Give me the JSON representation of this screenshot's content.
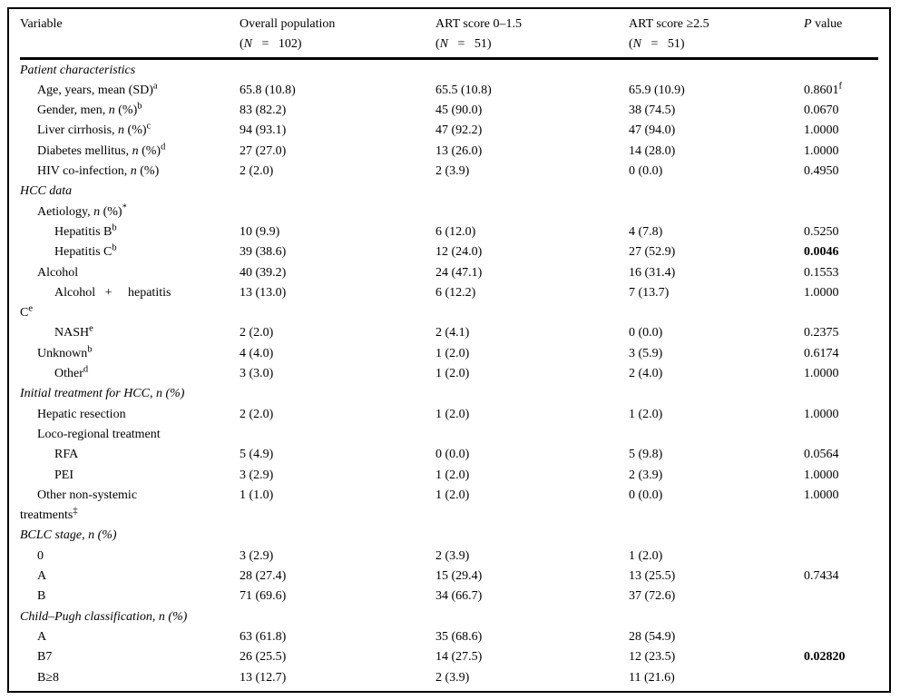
{
  "table": {
    "header": {
      "variable": "Variable",
      "groups": [
        {
          "line1": [
            {
              "t": "Overall population"
            }
          ],
          "line2": [
            {
              "t": "("
            },
            {
              "t": "N",
              "s": "i"
            },
            {
              "t": "   =   "
            },
            {
              "t": "102)"
            }
          ]
        },
        {
          "line1": [
            {
              "t": "ART score 0–1.5"
            }
          ],
          "line2": [
            {
              "t": "("
            },
            {
              "t": "N",
              "s": "i"
            },
            {
              "t": "   =   "
            },
            {
              "t": "51)"
            }
          ]
        },
        {
          "line1": [
            {
              "t": "ART score ≥2.5"
            }
          ],
          "line2": [
            {
              "t": "("
            },
            {
              "t": "N",
              "s": "i"
            },
            {
              "t": "   =   "
            },
            {
              "t": "51)"
            }
          ]
        }
      ],
      "p": [
        {
          "t": "P",
          "s": "i"
        },
        {
          "t": " value"
        }
      ]
    },
    "rows": [
      {
        "section": true,
        "indent": 0,
        "label": [
          {
            "t": "Patient characteristics"
          }
        ],
        "cols": [
          "",
          "",
          ""
        ],
        "p": []
      },
      {
        "indent": 1,
        "label": [
          {
            "t": "Age, years, mean (SD)"
          },
          {
            "t": "a",
            "s": "sup"
          }
        ],
        "cols": [
          "65.8 (10.8)",
          "65.5 (10.8)",
          "65.9 (10.9)"
        ],
        "p": [
          {
            "t": "0.8601"
          },
          {
            "t": "f",
            "s": "sup"
          }
        ]
      },
      {
        "indent": 1,
        "label": [
          {
            "t": "Gender, men, "
          },
          {
            "t": "n",
            "s": "i"
          },
          {
            "t": " (%)"
          },
          {
            "t": "b",
            "s": "sup"
          }
        ],
        "cols": [
          "83 (82.2)",
          "45 (90.0)",
          "38 (74.5)"
        ],
        "p": [
          {
            "t": "0.0670"
          }
        ]
      },
      {
        "indent": 1,
        "label": [
          {
            "t": "Liver cirrhosis, "
          },
          {
            "t": "n",
            "s": "i"
          },
          {
            "t": " (%)"
          },
          {
            "t": "c",
            "s": "sup"
          }
        ],
        "cols": [
          "94 (93.1)",
          "47 (92.2)",
          "47 (94.0)"
        ],
        "p": [
          {
            "t": "1.0000"
          }
        ]
      },
      {
        "indent": 1,
        "label": [
          {
            "t": "Diabetes mellitus, "
          },
          {
            "t": "n",
            "s": "i"
          },
          {
            "t": " (%)"
          },
          {
            "t": "d",
            "s": "sup"
          }
        ],
        "cols": [
          "27 (27.0)",
          "13 (26.0)",
          "14 (28.0)"
        ],
        "p": [
          {
            "t": "1.0000"
          }
        ]
      },
      {
        "indent": 1,
        "label": [
          {
            "t": "HIV co-infection, "
          },
          {
            "t": "n",
            "s": "i"
          },
          {
            "t": " (%)"
          }
        ],
        "cols": [
          "2 (2.0)",
          "2 (3.9)",
          "0 (0.0)"
        ],
        "p": [
          {
            "t": "0.4950"
          }
        ]
      },
      {
        "section": true,
        "indent": 0,
        "label": [
          {
            "t": "HCC data"
          }
        ],
        "cols": [
          "",
          "",
          ""
        ],
        "p": []
      },
      {
        "indent": 1,
        "label": [
          {
            "t": "Aetiology, "
          },
          {
            "t": "n",
            "s": "i"
          },
          {
            "t": " (%)"
          },
          {
            "t": "*",
            "s": "sup"
          }
        ],
        "cols": [
          "",
          "",
          ""
        ],
        "p": []
      },
      {
        "indent": 2,
        "label": [
          {
            "t": "Hepatitis B"
          },
          {
            "t": "b",
            "s": "sup"
          }
        ],
        "cols": [
          "10 (9.9)",
          "6 (12.0)",
          "4 (7.8)"
        ],
        "p": [
          {
            "t": "0.5250"
          }
        ]
      },
      {
        "indent": 2,
        "label": [
          {
            "t": "Hepatitis C"
          },
          {
            "t": "b",
            "s": "sup"
          }
        ],
        "cols": [
          "39 (38.6)",
          "12 (24.0)",
          "27 (52.9)"
        ],
        "p": [
          {
            "t": "0.0046",
            "s": "b"
          }
        ]
      },
      {
        "indent": 1,
        "label": [
          {
            "t": "Alcohol"
          }
        ],
        "cols": [
          "40 (39.2)",
          "24 (47.1)",
          "16 (31.4)"
        ],
        "p": [
          {
            "t": "0.1553"
          }
        ]
      },
      {
        "indent": 2,
        "label": [
          {
            "t": "Alcohol   +     hepatitis"
          },
          {
            "s": "br"
          },
          {
            "t": "C"
          },
          {
            "t": "e",
            "s": "sup"
          }
        ],
        "cols": [
          "13 (13.0)",
          "6 (12.2)",
          "7 (13.7)"
        ],
        "p": [
          {
            "t": "1.0000"
          }
        ]
      },
      {
        "indent": 2,
        "label": [
          {
            "t": "NASH"
          },
          {
            "t": "e",
            "s": "sup"
          }
        ],
        "cols": [
          "2 (2.0)",
          "2 (4.1)",
          "0 (0.0)"
        ],
        "p": [
          {
            "t": "0.2375"
          }
        ]
      },
      {
        "indent": 1,
        "label": [
          {
            "t": "Unknown"
          },
          {
            "t": "b",
            "s": "sup"
          }
        ],
        "cols": [
          "4 (4.0)",
          "1 (2.0)",
          "3 (5.9)"
        ],
        "p": [
          {
            "t": "0.6174"
          }
        ]
      },
      {
        "indent": 2,
        "label": [
          {
            "t": "Other"
          },
          {
            "t": "d",
            "s": "sup"
          }
        ],
        "cols": [
          "3 (3.0)",
          "1 (2.0)",
          "2 (4.0)"
        ],
        "p": [
          {
            "t": "1.0000"
          }
        ]
      },
      {
        "section": true,
        "indent": 0,
        "label": [
          {
            "t": "Initial treatment for HCC, n (%)"
          }
        ],
        "cols": [
          "",
          "",
          ""
        ],
        "p": []
      },
      {
        "indent": 1,
        "label": [
          {
            "t": "Hepatic resection"
          }
        ],
        "cols": [
          "2 (2.0)",
          "1 (2.0)",
          "1 (2.0)"
        ],
        "p": [
          {
            "t": "1.0000"
          }
        ]
      },
      {
        "indent": 1,
        "label": [
          {
            "t": "Loco-regional treatment"
          }
        ],
        "cols": [
          "",
          "",
          ""
        ],
        "p": []
      },
      {
        "indent": 2,
        "label": [
          {
            "t": "RFA"
          }
        ],
        "cols": [
          "5 (4.9)",
          "0 (0.0)",
          "5 (9.8)"
        ],
        "p": [
          {
            "t": "0.0564"
          }
        ]
      },
      {
        "indent": 2,
        "label": [
          {
            "t": "PEI"
          }
        ],
        "cols": [
          "3 (2.9)",
          "1 (2.0)",
          "2 (3.9)"
        ],
        "p": [
          {
            "t": "1.0000"
          }
        ]
      },
      {
        "indent": 1,
        "label": [
          {
            "t": "Other non-systemic"
          },
          {
            "s": "br"
          },
          {
            "t": "treatments"
          },
          {
            "t": "‡",
            "s": "sup"
          }
        ],
        "cols": [
          "1 (1.0)",
          "1 (2.0)",
          "0 (0.0)"
        ],
        "p": [
          {
            "t": "1.0000"
          }
        ]
      },
      {
        "section": true,
        "indent": 0,
        "label": [
          {
            "t": "BCLC stage, n (%)"
          }
        ],
        "cols": [
          "",
          "",
          ""
        ],
        "p": []
      },
      {
        "indent": 1,
        "label": [
          {
            "t": "0"
          }
        ],
        "cols": [
          "3 (2.9)",
          "2 (3.9)",
          "1 (2.0)"
        ],
        "p": []
      },
      {
        "indent": 1,
        "label": [
          {
            "t": "A"
          }
        ],
        "cols": [
          "28 (27.4)",
          "15 (29.4)",
          "13 (25.5)"
        ],
        "p": [
          {
            "t": "0.7434"
          }
        ]
      },
      {
        "indent": 1,
        "label": [
          {
            "t": "B"
          }
        ],
        "cols": [
          "71 (69.6)",
          "34 (66.7)",
          "37 (72.6)"
        ],
        "p": []
      },
      {
        "section": true,
        "indent": 0,
        "label": [
          {
            "t": "Child–Pugh classification, n (%)"
          }
        ],
        "cols": [
          "",
          "",
          ""
        ],
        "p": []
      },
      {
        "indent": 1,
        "label": [
          {
            "t": "A"
          }
        ],
        "cols": [
          "63 (61.8)",
          "35 (68.6)",
          "28 (54.9)"
        ],
        "p": []
      },
      {
        "indent": 1,
        "label": [
          {
            "t": "B7"
          }
        ],
        "cols": [
          "26 (25.5)",
          "14 (27.5)",
          "12 (23.5)"
        ],
        "p": [
          {
            "t": "0.02820",
            "s": "b"
          }
        ]
      },
      {
        "indent": 1,
        "label": [
          {
            "t": "B≥8"
          }
        ],
        "cols": [
          "13 (12.7)",
          "2 (3.9)",
          "11 (21.6)"
        ],
        "p": []
      }
    ]
  },
  "colors": {
    "text": "#000000",
    "border": "#000000",
    "background": "#ffffff"
  }
}
